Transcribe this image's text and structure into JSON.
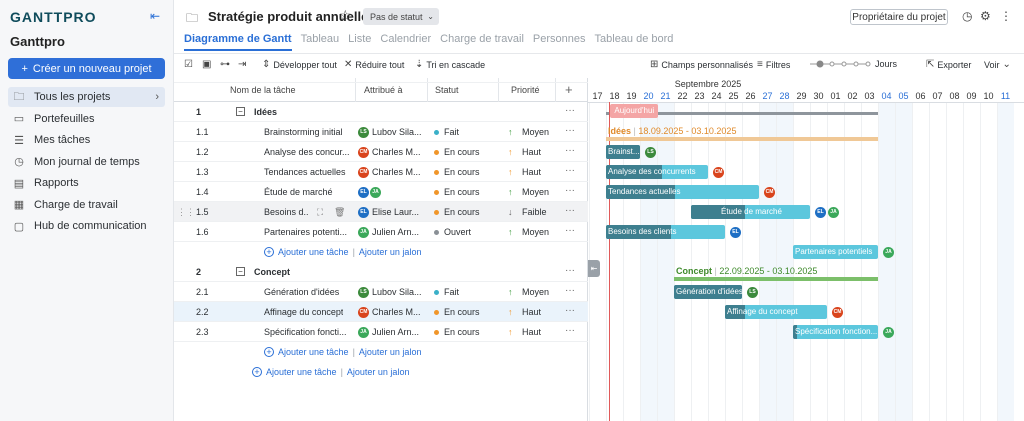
{
  "sidebar": {
    "logo": "GANTTPRO",
    "workspace": "Ganttpro",
    "create_label": "Créer un nouveau projet",
    "items": [
      {
        "label": "Tous les projets",
        "icon": "folder-icon",
        "glyph": "🗀"
      },
      {
        "label": "Portefeuilles",
        "icon": "briefcase-icon",
        "glyph": "▭"
      },
      {
        "label": "Mes tâches",
        "icon": "list-icon",
        "glyph": "☰"
      },
      {
        "label": "Mon journal de temps",
        "icon": "clock-icon",
        "glyph": "◷"
      },
      {
        "label": "Rapports",
        "icon": "report-icon",
        "glyph": "▤"
      },
      {
        "label": "Charge de travail",
        "icon": "workload-icon",
        "glyph": "▦"
      },
      {
        "label": "Hub de communication",
        "icon": "chat-icon",
        "glyph": "▢"
      }
    ]
  },
  "header": {
    "title": "Stratégie produit annuelle",
    "status": "Pas de statut",
    "owner_label": "Propriétaire du projet",
    "tabs": [
      "Diagramme de Gantt",
      "Tableau",
      "Liste",
      "Calendrier",
      "Charge de travail",
      "Personnes",
      "Tableau de bord"
    ]
  },
  "toolbar": {
    "expand": "Développer tout",
    "collapse": "Réduire tout",
    "cascade": "Tri en cascade",
    "custom_fields": "Champs personnalisés",
    "filters": "Filtres",
    "zoom_unit": "Jours",
    "export": "Exporter",
    "view": "Voir"
  },
  "grid": {
    "headers": {
      "name": "Nom de la tâche",
      "assigned": "Attribué à",
      "status": "Statut",
      "priority": "Priorité"
    },
    "add_task": "Ajouter une tâche",
    "add_milestone": "Ajouter un jalon",
    "rows": [
      {
        "type": "group",
        "num": "1",
        "name": "Idées"
      },
      {
        "type": "task",
        "num": "1.1",
        "name": "Brainstorming initial",
        "assignee": "Lubov Sila...",
        "avatars": [
          {
            "i": "LS",
            "c": "#3c8a3c"
          }
        ],
        "status": "Fait",
        "status_color": "#3ab0c8",
        "priority": "Moyen",
        "arrow": "↑",
        "arrow_color": "#3c9a3c"
      },
      {
        "type": "task",
        "num": "1.2",
        "name": "Analyse des concur...",
        "assignee": "Charles M...",
        "avatars": [
          {
            "i": "CM",
            "c": "#d9441c"
          }
        ],
        "status": "En cours",
        "status_color": "#f0962a",
        "priority": "Haut",
        "arrow": "↑",
        "arrow_color": "#f0962a"
      },
      {
        "type": "task",
        "num": "1.3",
        "name": "Tendances actuelles",
        "assignee": "Charles M...",
        "avatars": [
          {
            "i": "CM",
            "c": "#d9441c"
          }
        ],
        "status": "En cours",
        "status_color": "#f0962a",
        "priority": "Haut",
        "arrow": "↑",
        "arrow_color": "#f0962a"
      },
      {
        "type": "task",
        "num": "1.4",
        "name": "Étude de marché",
        "assignee": "",
        "avatars": [
          {
            "i": "EL",
            "c": "#1f6fc4"
          },
          {
            "i": "JA",
            "c": "#3ba85a"
          }
        ],
        "status": "En cours",
        "status_color": "#f0962a",
        "priority": "Moyen",
        "arrow": "↑",
        "arrow_color": "#3c9a3c"
      },
      {
        "type": "task",
        "num": "1.5",
        "name": "Besoins d...",
        "assignee": "Elise Laur...",
        "avatars": [
          {
            "i": "EL",
            "c": "#1f6fc4"
          }
        ],
        "status": "En cours",
        "status_color": "#f0962a",
        "priority": "Faible",
        "arrow": "↓",
        "arrow_color": "#666666",
        "hover": true
      },
      {
        "type": "task",
        "num": "1.6",
        "name": "Partenaires potenti...",
        "assignee": "Julien Arn...",
        "avatars": [
          {
            "i": "JA",
            "c": "#3ba85a"
          }
        ],
        "status": "Ouvert",
        "status_color": "#8a9096",
        "priority": "Moyen",
        "arrow": "↑",
        "arrow_color": "#3c9a3c"
      },
      {
        "type": "add"
      },
      {
        "type": "group",
        "num": "2",
        "name": "Concept"
      },
      {
        "type": "task",
        "num": "2.1",
        "name": "Génération d'idées",
        "assignee": "Lubov Sila...",
        "avatars": [
          {
            "i": "LS",
            "c": "#3c8a3c"
          }
        ],
        "status": "Fait",
        "status_color": "#3ab0c8",
        "priority": "Moyen",
        "arrow": "↑",
        "arrow_color": "#3c9a3c"
      },
      {
        "type": "task",
        "num": "2.2",
        "name": "Affinage du concept",
        "assignee": "Charles M...",
        "avatars": [
          {
            "i": "CM",
            "c": "#d9441c"
          }
        ],
        "status": "En cours",
        "status_color": "#f0962a",
        "priority": "Haut",
        "arrow": "↑",
        "arrow_color": "#f0962a",
        "highlight": true
      },
      {
        "type": "task",
        "num": "2.3",
        "name": "Spécification foncti...",
        "assignee": "Julien Arn...",
        "avatars": [
          {
            "i": "JA",
            "c": "#3ba85a"
          }
        ],
        "status": "En cours",
        "status_color": "#f0962a",
        "priority": "Haut",
        "arrow": "↑",
        "arrow_color": "#f0962a"
      },
      {
        "type": "add"
      },
      {
        "type": "add-root"
      }
    ]
  },
  "gantt": {
    "month": "Septembre 2025",
    "days": [
      {
        "d": "17",
        "we": false
      },
      {
        "d": "18",
        "we": false
      },
      {
        "d": "19",
        "we": false
      },
      {
        "d": "20",
        "we": true
      },
      {
        "d": "21",
        "we": true
      },
      {
        "d": "22",
        "we": false
      },
      {
        "d": "23",
        "we": false
      },
      {
        "d": "24",
        "we": false
      },
      {
        "d": "25",
        "we": false
      },
      {
        "d": "26",
        "we": false
      },
      {
        "d": "27",
        "we": true
      },
      {
        "d": "28",
        "we": true
      },
      {
        "d": "29",
        "we": false
      },
      {
        "d": "30",
        "we": false
      },
      {
        "d": "01",
        "we": false
      },
      {
        "d": "02",
        "we": false
      },
      {
        "d": "03",
        "we": false
      },
      {
        "d": "04",
        "we": true
      },
      {
        "d": "05",
        "we": true
      },
      {
        "d": "06",
        "we": false
      },
      {
        "d": "07",
        "we": false
      },
      {
        "d": "08",
        "we": false
      },
      {
        "d": "09",
        "we": false
      },
      {
        "d": "10",
        "we": false
      },
      {
        "d": "11",
        "we": true
      }
    ],
    "today_label": "Aujourd'hui",
    "today_index": 1.2,
    "groups": [
      {
        "row": 0,
        "name": "Idées",
        "dates": "18.09.2025 - 03.10.2025",
        "start": 1,
        "end": 17,
        "color": "#f0c896",
        "label_color": "#e08a2a"
      },
      {
        "row": 7,
        "name": "Concept",
        "dates": "22.09.2025 - 03.10.2025",
        "start": 5,
        "end": 17,
        "color": "#7cbf6a",
        "label_color": "#3e8a2a"
      }
    ],
    "tasks": [
      {
        "row": 1,
        "name": "Brainst...",
        "start": 1,
        "end": 3,
        "progress": 1.0,
        "avatars": [
          {
            "i": "LS",
            "c": "#3c8a3c"
          }
        ]
      },
      {
        "row": 2,
        "name": "Analyse des concurrents",
        "start": 1,
        "end": 7,
        "progress": 0.55,
        "avatars": [
          {
            "i": "CM",
            "c": "#d9441c"
          }
        ]
      },
      {
        "row": 3,
        "name": "Tendances actuelles",
        "start": 1,
        "end": 10,
        "progress": 0.45,
        "avatars": [
          {
            "i": "CM",
            "c": "#d9441c"
          }
        ]
      },
      {
        "row": 4,
        "name": "Étude de marché",
        "start": 6,
        "end": 13,
        "progress": 0.45,
        "avatars": [
          {
            "i": "EL",
            "c": "#1f6fc4"
          },
          {
            "i": "JA",
            "c": "#3ba85a"
          }
        ]
      },
      {
        "row": 5,
        "name": "Besoins des clients",
        "start": 1,
        "end": 8,
        "progress": 0.55,
        "avatars": [
          {
            "i": "EL",
            "c": "#1f6fc4"
          }
        ]
      },
      {
        "row": 6,
        "name": "Partenaires potentiels",
        "start": 12,
        "end": 17,
        "progress": 0.0,
        "avatars": [
          {
            "i": "JA",
            "c": "#3ba85a"
          }
        ]
      },
      {
        "row": 8,
        "name": "Génération d'idées",
        "start": 5,
        "end": 9,
        "progress": 1.0,
        "avatars": [
          {
            "i": "LS",
            "c": "#3c8a3c"
          }
        ]
      },
      {
        "row": 9,
        "name": "Affinage du concept",
        "start": 8,
        "end": 14,
        "progress": 0.2,
        "avatars": [
          {
            "i": "CM",
            "c": "#d9441c"
          }
        ]
      },
      {
        "row": 10,
        "name": "Spécification fonction...",
        "start": 12,
        "end": 17,
        "progress": 0.05,
        "avatars": [
          {
            "i": "JA",
            "c": "#3ba85a"
          }
        ]
      }
    ]
  }
}
